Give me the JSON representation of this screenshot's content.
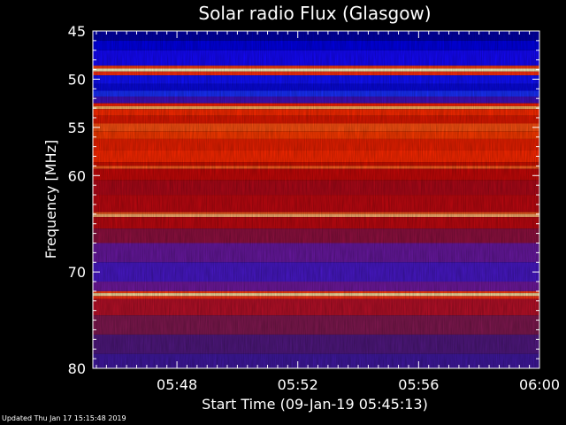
{
  "chart_data": {
    "type": "heatmap",
    "title": "Solar radio Flux (Glasgow)",
    "xlabel": "Start Time (09-Jan-19 05:45:13)",
    "ylabel": "Frequency [MHz]",
    "x_start": "05:45:13",
    "x_end": "06:00:00",
    "x_ticks": [
      "05:48",
      "05:52",
      "05:56",
      "06:00"
    ],
    "y_ticks": [
      45,
      50,
      55,
      60,
      70,
      80
    ],
    "ylim": [
      80,
      45
    ],
    "colormap": "blue-red-yellow",
    "bands": [
      {
        "f0": 45.0,
        "f1": 46.0,
        "color": "#0000a8"
      },
      {
        "f0": 46.0,
        "f1": 47.0,
        "color": "#0000e8"
      },
      {
        "f0": 47.0,
        "f1": 48.6,
        "color": "#1408ff"
      },
      {
        "f0": 48.6,
        "f1": 48.9,
        "color": "#ff4010"
      },
      {
        "f0": 48.9,
        "f1": 49.2,
        "color": "#fff8c0"
      },
      {
        "f0": 49.2,
        "f1": 49.6,
        "color": "#ff3010"
      },
      {
        "f0": 49.6,
        "f1": 50.5,
        "color": "#1010ff"
      },
      {
        "f0": 50.5,
        "f1": 51.2,
        "color": "#0808e0"
      },
      {
        "f0": 51.2,
        "f1": 51.8,
        "color": "#1830ff"
      },
      {
        "f0": 51.8,
        "f1": 52.5,
        "color": "#4010c0"
      },
      {
        "f0": 52.5,
        "f1": 52.8,
        "color": "#ff2000"
      },
      {
        "f0": 52.8,
        "f1": 53.1,
        "color": "#ffb060"
      },
      {
        "f0": 53.1,
        "f1": 53.8,
        "color": "#ff2a00"
      },
      {
        "f0": 53.8,
        "f1": 54.6,
        "color": "#e01800"
      },
      {
        "f0": 54.6,
        "f1": 55.4,
        "color": "#ff5010"
      },
      {
        "f0": 55.4,
        "f1": 56.2,
        "color": "#ff3a00"
      },
      {
        "f0": 56.2,
        "f1": 57.4,
        "color": "#ee2000"
      },
      {
        "f0": 57.4,
        "f1": 58.6,
        "color": "#ff2800"
      },
      {
        "f0": 58.6,
        "f1": 59.0,
        "color": "#d01000"
      },
      {
        "f0": 59.0,
        "f1": 59.3,
        "color": "#ff6020"
      },
      {
        "f0": 59.3,
        "f1": 60.5,
        "color": "#c80808"
      },
      {
        "f0": 60.5,
        "f1": 62.0,
        "color": "#b00818"
      },
      {
        "f0": 62.0,
        "f1": 63.8,
        "color": "#c00810"
      },
      {
        "f0": 63.8,
        "f1": 64.0,
        "color": "#ff6020"
      },
      {
        "f0": 64.0,
        "f1": 64.3,
        "color": "#ffb070"
      },
      {
        "f0": 64.3,
        "f1": 65.5,
        "color": "#c00810"
      },
      {
        "f0": 65.5,
        "f1": 67.0,
        "color": "#901040"
      },
      {
        "f0": 67.0,
        "f1": 69.0,
        "color": "#6818a0"
      },
      {
        "f0": 69.0,
        "f1": 71.0,
        "color": "#4818c8"
      },
      {
        "f0": 71.0,
        "f1": 72.0,
        "color": "#7018a0"
      },
      {
        "f0": 72.0,
        "f1": 72.2,
        "color": "#ff4010"
      },
      {
        "f0": 72.2,
        "f1": 72.5,
        "color": "#ffe0a0"
      },
      {
        "f0": 72.5,
        "f1": 72.8,
        "color": "#ff3010"
      },
      {
        "f0": 72.8,
        "f1": 74.5,
        "color": "#b81028"
      },
      {
        "f0": 74.5,
        "f1": 76.5,
        "color": "#801850"
      },
      {
        "f0": 76.5,
        "f1": 78.5,
        "color": "#501880"
      },
      {
        "f0": 78.5,
        "f1": 80.0,
        "color": "#4018a0"
      }
    ]
  },
  "footer": {
    "updated": "Updated Thu Jan 17 15:15:48 2019"
  }
}
